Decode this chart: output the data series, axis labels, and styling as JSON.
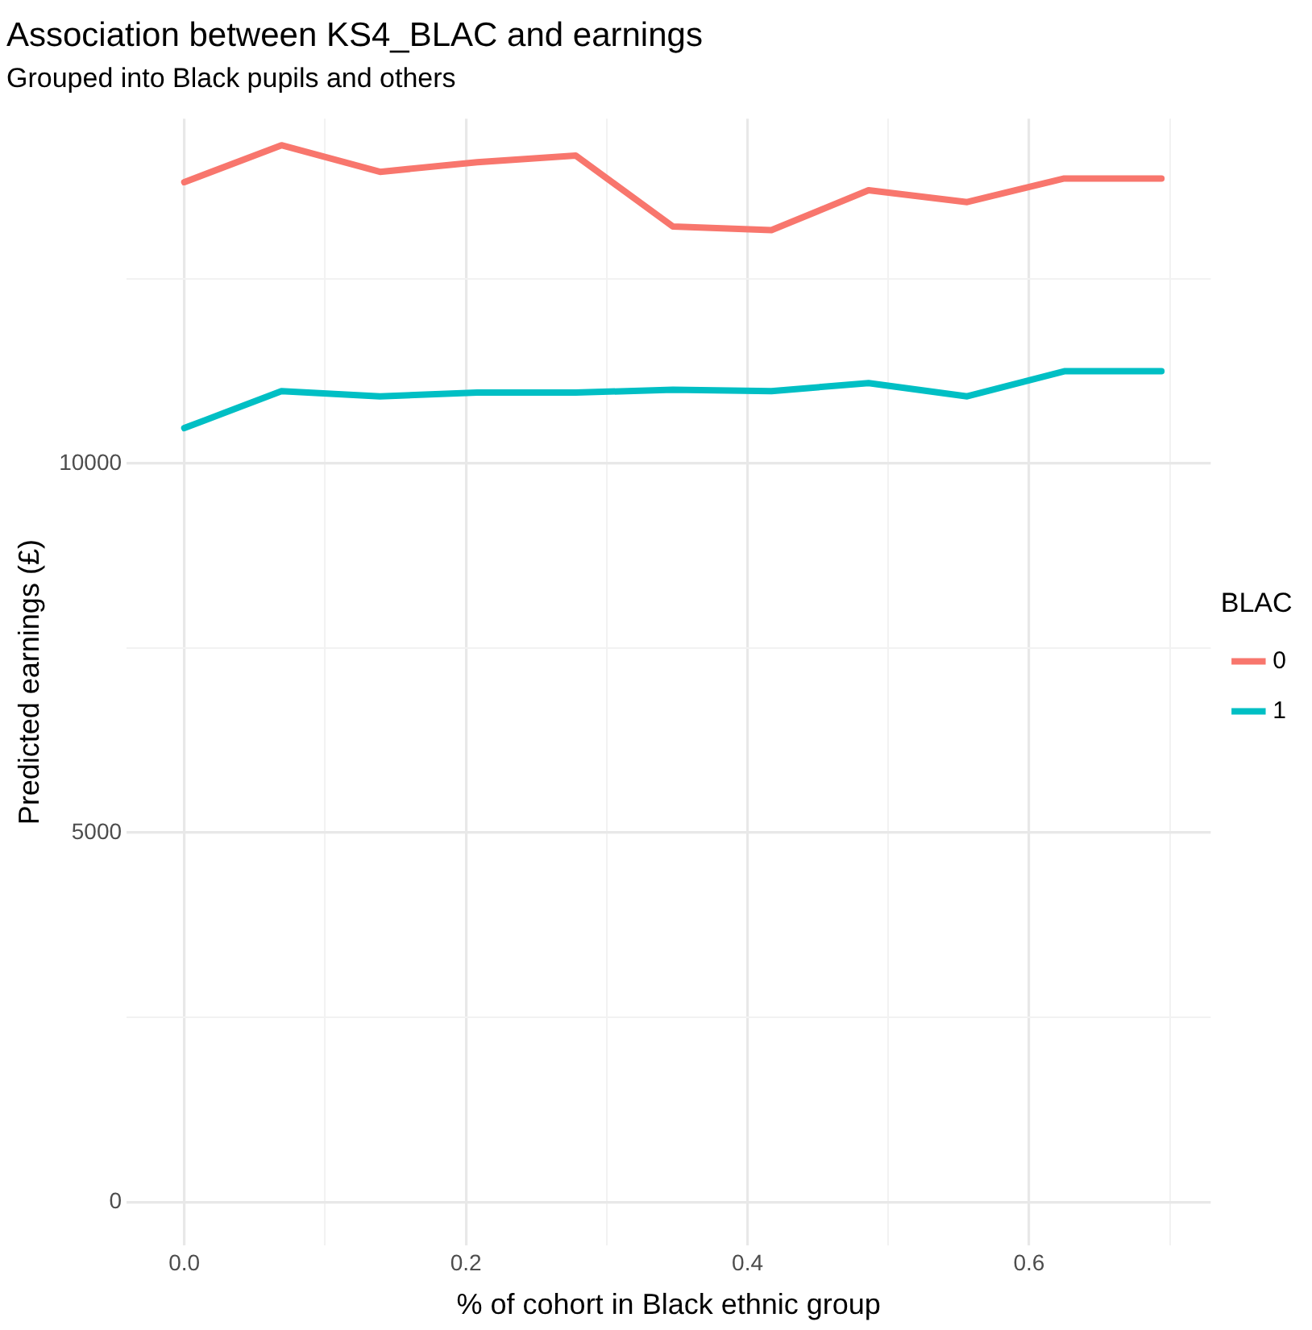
{
  "chart_data": {
    "type": "line",
    "title": "Association between KS4_BLAC and earnings",
    "subtitle": "Grouped into Black pupils and others",
    "xlabel": "% of cohort in Black ethnic group",
    "ylabel": "Predicted earnings (£)",
    "legend_title": "BLAC",
    "legend": "right",
    "grid": true,
    "marker": "none",
    "line_style": "solid",
    "x": [
      0,
      0.069,
      0.139,
      0.208,
      0.278,
      0.347,
      0.417,
      0.486,
      0.556,
      0.625,
      0.694
    ],
    "series": [
      {
        "name": "0",
        "color": "#f8766d",
        "values": [
          13810,
          14310,
          13950,
          14080,
          14170,
          13210,
          13160,
          13700,
          13540,
          13860,
          13860
        ]
      },
      {
        "name": "1",
        "color": "#00bfc4",
        "values": [
          10480,
          10980,
          10910,
          10960,
          10960,
          11000,
          10980,
          11090,
          10910,
          11250,
          11250
        ]
      }
    ],
    "xlim": [
      -0.041,
      0.729
    ],
    "ylim": [
      -590,
      14670
    ],
    "xticks": [
      {
        "value": 0,
        "label": "0.0"
      },
      {
        "value": 0.1,
        "label": null
      },
      {
        "value": 0.2,
        "label": "0.2"
      },
      {
        "value": 0.3,
        "label": null
      },
      {
        "value": 0.4,
        "label": "0.4"
      },
      {
        "value": 0.5,
        "label": null
      },
      {
        "value": 0.6,
        "label": "0.6"
      },
      {
        "value": 0.7,
        "label": null
      }
    ],
    "yticks": [
      0,
      {
        "value": 2500,
        "label": null
      },
      5000,
      {
        "value": 7500,
        "label": null
      },
      10000,
      {
        "value": 12500,
        "label": null
      }
    ]
  }
}
